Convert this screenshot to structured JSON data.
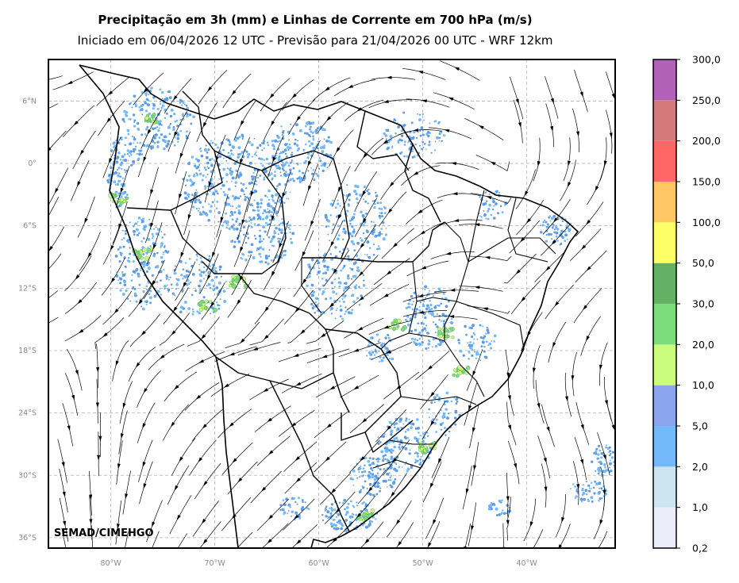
{
  "title": "Precipitação em 3h (mm) e Linhas de Corrente em 700 hPa (m/s)",
  "subtitle": "Iniciado em 06/04/2026 12 UTC - Previsão para 21/04/2026 00 UTC - WRF 12km",
  "credit": "SEMAD/CIMEHGO",
  "lat_labels": [
    "6°N",
    "0°",
    "6°S",
    "12°S",
    "18°S",
    "24°S",
    "30°S",
    "36°S"
  ],
  "lon_labels": [
    "80°W",
    "70°W",
    "60°W",
    "50°W",
    "40°W"
  ],
  "colorbar": {
    "labels": [
      "0,2",
      "1,0",
      "2,0",
      "5,0",
      "10,0",
      "20,0",
      "30,0",
      "50,0",
      "100,0",
      "150,0",
      "200,0",
      "250,0",
      "300,0"
    ],
    "colors": [
      "#ececfa",
      "#cce4ef",
      "#73b8f8",
      "#8aa5ee",
      "#ccfc7c",
      "#7ddc7b",
      "#64b064",
      "#ffff66",
      "#ffc764",
      "#ff6666",
      "#d57a7a",
      "#b162b8"
    ]
  },
  "map_extent": {
    "lon_min": -86,
    "lon_max": -31.5,
    "lat_min": -37,
    "lat_max": 10
  }
}
